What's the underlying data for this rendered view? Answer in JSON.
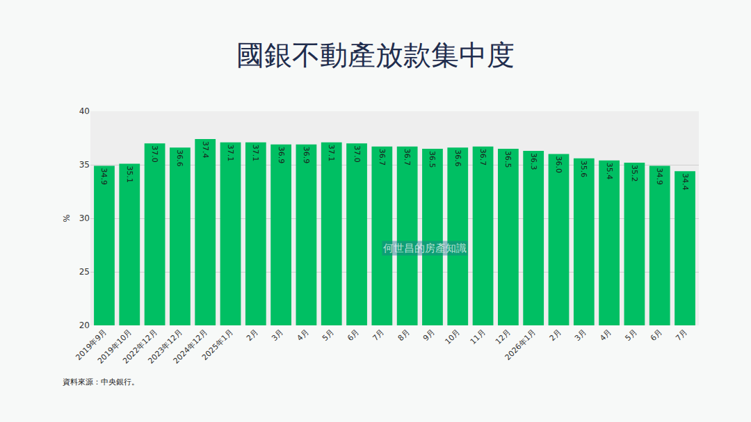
{
  "chart_data": {
    "type": "bar",
    "title": "國銀不動產放款集中度",
    "y_label": "%",
    "categories": [
      "2019年9月",
      "2019年10月",
      "2022年12月",
      "2023年12月",
      "2024年12月",
      "2025年1月",
      "2月",
      "3月",
      "4月",
      "5月",
      "6月",
      "7月",
      "8月",
      "9月",
      "10月",
      "11月",
      "12月",
      "2026年1月",
      "2月",
      "3月",
      "4月",
      "5月",
      "6月",
      "7月"
    ],
    "values": [
      34.9,
      35.1,
      37.0,
      36.6,
      37.4,
      37.1,
      37.1,
      36.9,
      36.9,
      37.1,
      37.0,
      36.7,
      36.7,
      36.5,
      36.6,
      36.7,
      36.5,
      36.3,
      36.0,
      35.6,
      35.4,
      35.2,
      34.9,
      34.4
    ],
    "value_labels": [
      "34.9",
      "35.1",
      "37.0",
      "36.6",
      "37.4",
      "37.1",
      "37.1",
      "36.9",
      "36.9",
      "37.1",
      "37.0",
      "36.7",
      "36.7",
      "36.5",
      "36.6",
      "36.7",
      "36.5",
      "36.3",
      "36.0",
      "35.6",
      "35.4",
      "35.2",
      "34.9",
      "34.4"
    ],
    "color": "#00bf63",
    "ylim": [
      20,
      40
    ],
    "yticks": [
      20,
      25,
      30,
      35,
      40
    ],
    "grid": true,
    "data_labels": true,
    "annotations": [
      "資料來源：中央銀行。",
      "何世昌的房產知識"
    ]
  }
}
